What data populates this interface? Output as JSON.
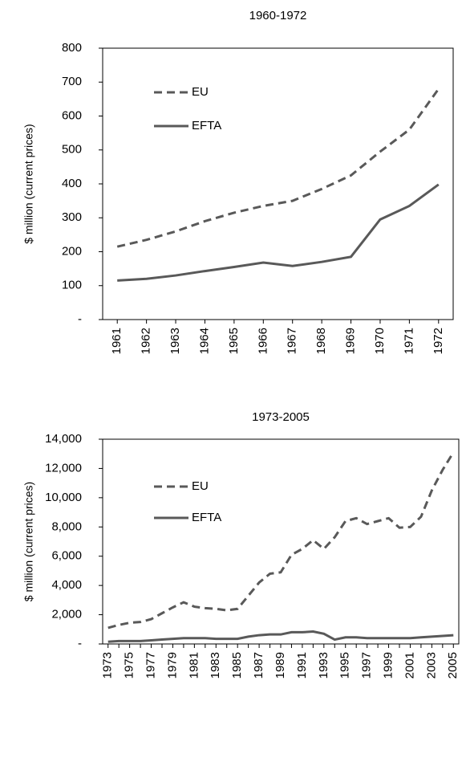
{
  "chart_data": [
    {
      "type": "line",
      "title": "1960-1972",
      "y_label": "$ million (current prices)",
      "categories": [
        "1961",
        "1962",
        "1963",
        "1964",
        "1965",
        "1966",
        "1967",
        "1968",
        "1969",
        "1970",
        "1971",
        "1972"
      ],
      "series": [
        {
          "name": "EU",
          "color": "#595959",
          "line_style": "dashed",
          "values": [
            215,
            235,
            260,
            290,
            315,
            335,
            350,
            385,
            425,
            495,
            560,
            680
          ]
        },
        {
          "name": "EFTA",
          "color": "#595959",
          "line_style": "solid",
          "values": [
            115,
            120,
            130,
            143,
            155,
            168,
            158,
            170,
            185,
            295,
            335,
            398
          ]
        }
      ],
      "ylim": [
        0,
        800
      ],
      "yticks": [
        {
          "value": 0,
          "label": "-"
        },
        100,
        200,
        300,
        400,
        500,
        600,
        700,
        800
      ]
    },
    {
      "type": "line",
      "title": "1973-2005",
      "y_label": "$ million (current prices)",
      "categories": [
        "1973",
        null,
        "1975",
        null,
        "1977",
        null,
        "1979",
        null,
        "1981",
        null,
        "1983",
        null,
        "1985",
        null,
        "1987",
        null,
        "1989",
        null,
        "1991",
        null,
        "1993",
        null,
        "1995",
        null,
        "1997",
        null,
        "1999",
        null,
        "2001",
        null,
        "2003",
        null,
        "2005"
      ],
      "series": [
        {
          "name": "EU",
          "color": "#595959",
          "line_style": "dashed",
          "values": [
            1100,
            1300,
            1450,
            1500,
            1700,
            2100,
            2500,
            2850,
            2550,
            2450,
            2400,
            2300,
            2400,
            3300,
            4200,
            4800,
            4900,
            6100,
            6500,
            7100,
            6500,
            7300,
            8400,
            8600,
            8200,
            8400,
            8600,
            7950,
            8000,
            8700,
            10500,
            11900,
            13100
          ]
        },
        {
          "name": "EFTA",
          "color": "#595959",
          "line_style": "solid",
          "values": [
            150,
            200,
            200,
            200,
            250,
            300,
            350,
            400,
            400,
            400,
            350,
            350,
            350,
            500,
            600,
            650,
            650,
            800,
            800,
            850,
            700,
            300,
            450,
            450,
            400,
            400,
            400,
            400,
            400,
            450,
            500,
            550,
            600
          ]
        }
      ],
      "ylim": [
        0,
        14000
      ],
      "yticks": [
        {
          "value": 0,
          "label": "-"
        },
        {
          "value": 2000,
          "label": "2,000"
        },
        {
          "value": 4000,
          "label": "4,000"
        },
        {
          "value": 6000,
          "label": "6,000"
        },
        {
          "value": 8000,
          "label": "8,000"
        },
        {
          "value": 10000,
          "label": "10,000"
        },
        {
          "value": 12000,
          "label": "12,000"
        },
        {
          "value": 14000,
          "label": "14,000"
        }
      ]
    }
  ]
}
